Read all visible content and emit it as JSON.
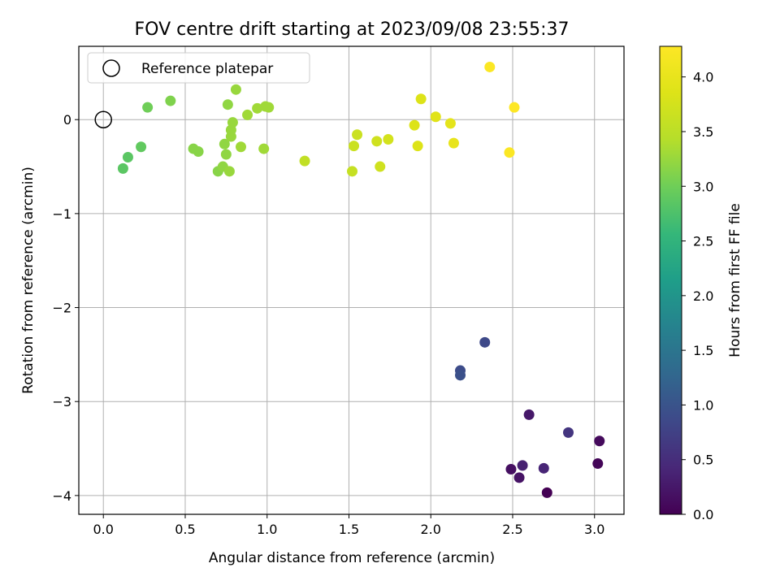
{
  "chart_data": {
    "type": "scatter",
    "title": "FOV centre drift starting at 2023/09/08 23:55:37",
    "xlabel": "Angular distance from reference (arcmin)",
    "ylabel": "Rotation from reference (arcmin)",
    "xlim": [
      -0.15,
      3.18
    ],
    "ylim": [
      -4.2,
      0.78
    ],
    "xticks": [
      0.0,
      0.5,
      1.0,
      1.5,
      2.0,
      2.5,
      3.0
    ],
    "xtick_labels": [
      "0.0",
      "0.5",
      "1.0",
      "1.5",
      "2.0",
      "2.5",
      "3.0"
    ],
    "yticks": [
      0,
      -1,
      -2,
      -3,
      -4
    ],
    "ytick_labels": [
      "0",
      "−1",
      "−2",
      "−3",
      "−4"
    ],
    "grid": true,
    "legend": {
      "position": "top-left",
      "entries": [
        {
          "label": "Reference platepar",
          "marker": "open-circle"
        }
      ]
    },
    "reference_point": {
      "x": 0.0,
      "y": 0.0
    },
    "colorbar": {
      "label": "Hours from first FF file",
      "colormap": "viridis",
      "range": [
        0.0,
        4.28
      ],
      "ticks": [
        0.0,
        0.5,
        1.0,
        1.5,
        2.0,
        2.5,
        3.0,
        3.5,
        4.0
      ],
      "tick_labels": [
        "0.0",
        "0.5",
        "1.0",
        "1.5",
        "2.0",
        "2.5",
        "3.0",
        "3.5",
        "4.0"
      ]
    },
    "points": [
      {
        "x": 2.71,
        "y": -3.97,
        "t": 0.0
      },
      {
        "x": 3.02,
        "y": -3.66,
        "t": 0.05
      },
      {
        "x": 3.03,
        "y": -3.42,
        "t": 0.1
      },
      {
        "x": 2.49,
        "y": -3.72,
        "t": 0.15
      },
      {
        "x": 2.54,
        "y": -3.81,
        "t": 0.2
      },
      {
        "x": 2.6,
        "y": -3.14,
        "t": 0.25
      },
      {
        "x": 2.56,
        "y": -3.68,
        "t": 0.35
      },
      {
        "x": 2.69,
        "y": -3.71,
        "t": 0.4
      },
      {
        "x": 2.84,
        "y": -3.33,
        "t": 0.6
      },
      {
        "x": 2.33,
        "y": -2.37,
        "t": 0.85
      },
      {
        "x": 2.18,
        "y": -2.67,
        "t": 0.9
      },
      {
        "x": 2.18,
        "y": -2.72,
        "t": 0.95
      },
      {
        "x": 0.12,
        "y": -0.52,
        "t": 2.85
      },
      {
        "x": 0.15,
        "y": -0.4,
        "t": 2.85
      },
      {
        "x": 0.23,
        "y": -0.29,
        "t": 2.9
      },
      {
        "x": 0.27,
        "y": 0.13,
        "t": 3.0
      },
      {
        "x": 0.41,
        "y": 0.2,
        "t": 3.1
      },
      {
        "x": 0.55,
        "y": -0.31,
        "t": 3.15
      },
      {
        "x": 0.58,
        "y": -0.34,
        "t": 3.15
      },
      {
        "x": 0.7,
        "y": -0.55,
        "t": 3.15
      },
      {
        "x": 0.73,
        "y": -0.5,
        "t": 3.2
      },
      {
        "x": 0.74,
        "y": -0.26,
        "t": 3.2
      },
      {
        "x": 0.75,
        "y": -0.37,
        "t": 3.2
      },
      {
        "x": 0.76,
        "y": 0.16,
        "t": 3.2
      },
      {
        "x": 0.77,
        "y": -0.55,
        "t": 3.25
      },
      {
        "x": 0.78,
        "y": -0.18,
        "t": 3.25
      },
      {
        "x": 0.78,
        "y": -0.11,
        "t": 3.25
      },
      {
        "x": 0.79,
        "y": -0.03,
        "t": 3.25
      },
      {
        "x": 0.81,
        "y": 0.32,
        "t": 3.25
      },
      {
        "x": 0.84,
        "y": -0.29,
        "t": 3.3
      },
      {
        "x": 0.88,
        "y": 0.05,
        "t": 3.3
      },
      {
        "x": 0.94,
        "y": 0.12,
        "t": 3.3
      },
      {
        "x": 0.98,
        "y": -0.31,
        "t": 3.3
      },
      {
        "x": 0.99,
        "y": 0.14,
        "t": 3.3
      },
      {
        "x": 1.01,
        "y": 0.13,
        "t": 3.3
      },
      {
        "x": 1.23,
        "y": -0.44,
        "t": 3.55
      },
      {
        "x": 1.52,
        "y": -0.55,
        "t": 3.6
      },
      {
        "x": 1.53,
        "y": -0.28,
        "t": 3.65
      },
      {
        "x": 1.55,
        "y": -0.16,
        "t": 3.65
      },
      {
        "x": 1.67,
        "y": -0.23,
        "t": 3.7
      },
      {
        "x": 1.69,
        "y": -0.5,
        "t": 3.7
      },
      {
        "x": 1.74,
        "y": -0.21,
        "t": 3.75
      },
      {
        "x": 1.9,
        "y": -0.06,
        "t": 3.85
      },
      {
        "x": 1.92,
        "y": -0.28,
        "t": 3.85
      },
      {
        "x": 1.94,
        "y": 0.22,
        "t": 3.85
      },
      {
        "x": 2.03,
        "y": 0.03,
        "t": 3.9
      },
      {
        "x": 2.12,
        "y": -0.04,
        "t": 3.95
      },
      {
        "x": 2.14,
        "y": -0.25,
        "t": 4.0
      },
      {
        "x": 2.36,
        "y": 0.56,
        "t": 4.25
      },
      {
        "x": 2.48,
        "y": -0.35,
        "t": 4.25
      },
      {
        "x": 2.51,
        "y": 0.13,
        "t": 4.28
      }
    ]
  }
}
